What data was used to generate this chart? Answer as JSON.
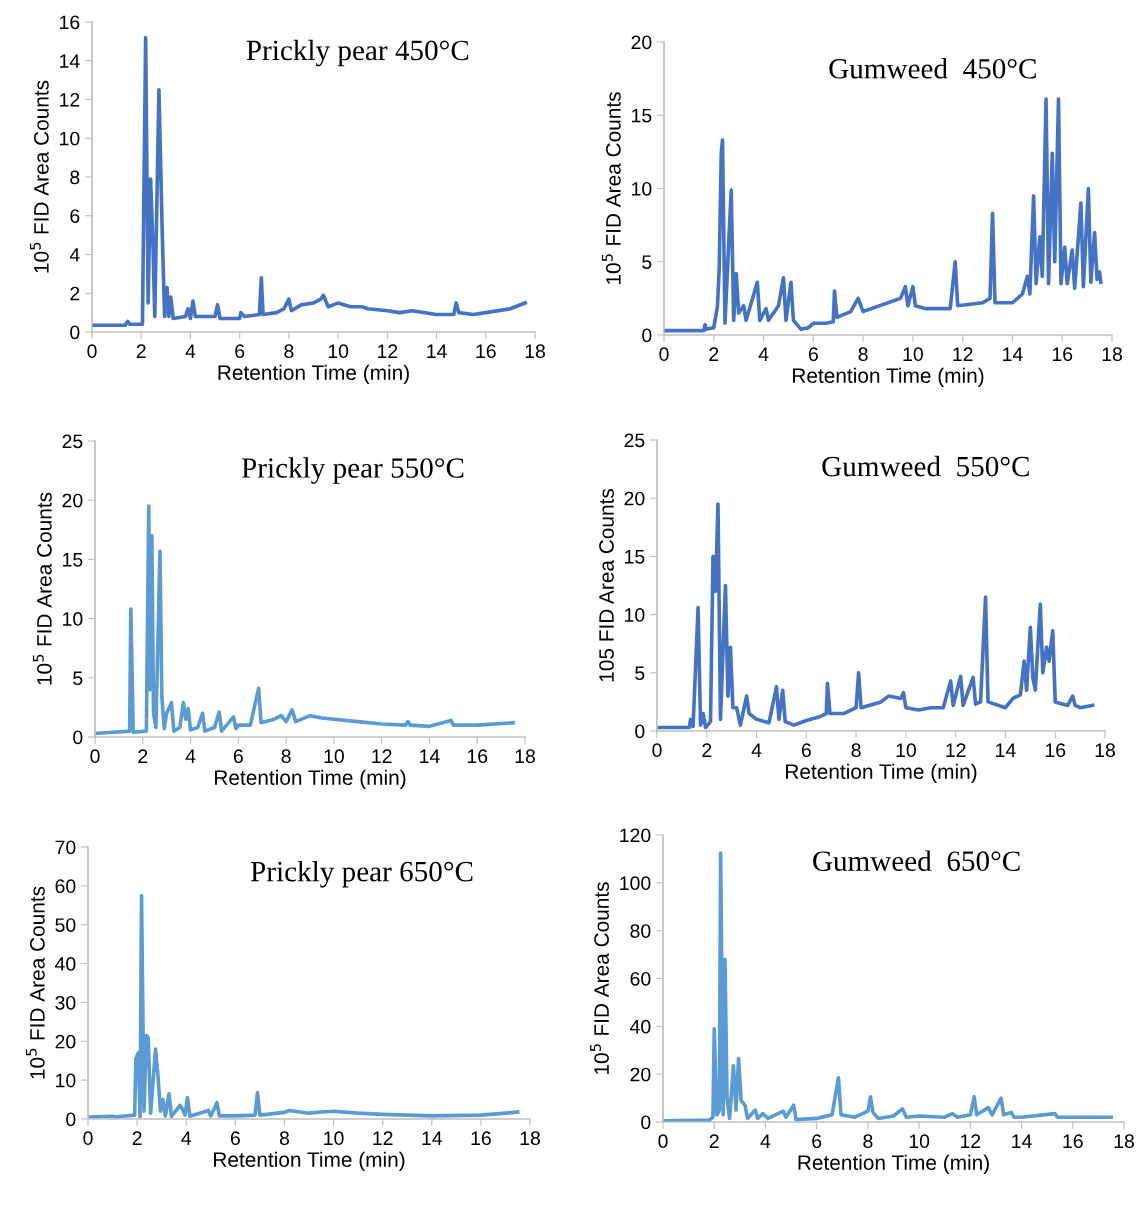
{
  "chart_data": [
    {
      "type": "line",
      "title": "Prickly pear 450°C",
      "xlabel": "Retention Time (min)",
      "ylabel": "10$^{5}$ FID Area Counts",
      "xlim": [
        0,
        18
      ],
      "xticks": [
        0,
        2,
        4,
        6,
        8,
        10,
        12,
        14,
        16,
        18
      ],
      "ylim": [
        0,
        16
      ],
      "yticks": [
        0,
        2,
        4,
        6,
        8,
        10,
        12,
        14,
        16
      ],
      "series": [
        {
          "color": "#4472c4",
          "x": [
            0,
            1.35,
            1.45,
            1.55,
            2.05,
            2.1,
            2.18,
            2.28,
            2.38,
            2.48,
            2.55,
            2.72,
            2.85,
            2.95,
            3.05,
            3.12,
            3.2,
            3.3,
            3.8,
            3.9,
            4.0,
            4.1,
            4.2,
            5.0,
            5.1,
            5.2,
            6.0,
            6.05,
            6.2,
            6.8,
            6.88,
            6.95,
            7.5,
            7.8,
            8.0,
            8.1,
            8.5,
            9.0,
            9.3,
            9.4,
            9.6,
            10.0,
            10.5,
            11.0,
            11.2,
            12.0,
            12.5,
            13.0,
            14.0,
            14.7,
            14.8,
            14.9,
            15.5,
            16.0,
            17.0,
            17.6
          ],
          "values": [
            0.35,
            0.35,
            0.55,
            0.4,
            0.4,
            6.2,
            15.2,
            1.5,
            7.9,
            4.4,
            0.8,
            12.5,
            5.3,
            0.8,
            2.3,
            0.8,
            1.8,
            0.7,
            0.8,
            1.2,
            0.7,
            1.6,
            0.8,
            0.8,
            1.4,
            0.7,
            0.7,
            1.0,
            0.8,
            0.9,
            2.8,
            0.9,
            1.0,
            1.2,
            1.7,
            1.1,
            1.4,
            1.5,
            1.7,
            1.9,
            1.3,
            1.5,
            1.3,
            1.3,
            1.2,
            1.1,
            1.0,
            1.1,
            0.9,
            0.9,
            1.5,
            1.0,
            0.9,
            1.0,
            1.2,
            1.5
          ]
        }
      ]
    },
    {
      "type": "line",
      "title": "Gumweed  450°C",
      "xlabel": "Retention Time (min)",
      "ylabel": "10$^{5}$ FID Area Counts",
      "xlim": [
        0,
        18
      ],
      "xticks": [
        0,
        2,
        4,
        6,
        8,
        10,
        12,
        14,
        16,
        18
      ],
      "ylim": [
        0,
        20
      ],
      "yticks": [
        0,
        5,
        10,
        15,
        20
      ],
      "series": [
        {
          "color": "#4472c4",
          "x": [
            0,
            1.6,
            1.65,
            1.7,
            2.0,
            2.15,
            2.22,
            2.3,
            2.35,
            2.45,
            2.7,
            2.8,
            2.9,
            3.0,
            3.2,
            3.3,
            3.75,
            3.85,
            4.1,
            4.2,
            4.6,
            4.8,
            4.9,
            5.1,
            5.2,
            5.5,
            5.8,
            6.0,
            6.5,
            6.8,
            6.85,
            6.95,
            7.5,
            7.8,
            8.0,
            8.5,
            9.0,
            9.5,
            9.7,
            9.8,
            10.0,
            10.1,
            10.5,
            11.0,
            11.5,
            11.7,
            11.8,
            12.3,
            12.8,
            13.1,
            13.2,
            13.3,
            14.0,
            14.4,
            14.6,
            14.7,
            14.85,
            14.95,
            15.1,
            15.2,
            15.35,
            15.45,
            15.6,
            15.7,
            15.85,
            15.95,
            16.1,
            16.2,
            16.4,
            16.5,
            16.75,
            16.85,
            17.05,
            17.15,
            17.3,
            17.4,
            17.5,
            17.55
          ],
          "values": [
            0.3,
            0.3,
            0.7,
            0.4,
            0.5,
            2.0,
            4.6,
            12.4,
            13.3,
            0.8,
            9.9,
            1.0,
            4.2,
            1.5,
            2.0,
            1.0,
            3.6,
            1.0,
            1.8,
            1.0,
            2.0,
            3.9,
            1.0,
            3.6,
            1.0,
            0.4,
            0.5,
            0.8,
            0.8,
            0.9,
            3.0,
            1.2,
            1.6,
            2.5,
            1.6,
            1.9,
            2.2,
            2.5,
            3.3,
            2.0,
            3.3,
            2.0,
            1.8,
            1.8,
            1.8,
            5.0,
            2.0,
            2.1,
            2.2,
            2.5,
            8.3,
            2.2,
            2.2,
            2.8,
            4.0,
            2.8,
            9.5,
            3.5,
            6.7,
            4.0,
            16.1,
            3.5,
            12.4,
            5.0,
            16.1,
            3.5,
            6.0,
            3.5,
            5.8,
            3.2,
            9.0,
            3.3,
            10.0,
            3.6,
            7.0,
            3.8,
            4.3,
            3.6
          ]
        }
      ]
    },
    {
      "type": "line",
      "title": "Prickly pear 550°C",
      "xlabel": "Retention Time (min)",
      "ylabel": "10$^{5}$ FID Area Counts",
      "xlim": [
        0,
        18
      ],
      "xticks": [
        0,
        2,
        4,
        6,
        8,
        10,
        12,
        14,
        16,
        18
      ],
      "ylim": [
        0,
        25
      ],
      "yticks": [
        0,
        5,
        10,
        15,
        20,
        25
      ],
      "series": [
        {
          "color": "#5b9bd5",
          "x": [
            0,
            1.45,
            1.5,
            1.6,
            2.15,
            2.25,
            2.3,
            2.38,
            2.45,
            2.55,
            2.72,
            2.8,
            2.9,
            3.0,
            3.2,
            3.3,
            3.55,
            3.7,
            3.8,
            3.9,
            4.0,
            4.3,
            4.5,
            4.6,
            5.0,
            5.2,
            5.3,
            5.8,
            5.9,
            6.0,
            6.5,
            6.85,
            6.95,
            7.5,
            7.8,
            8.0,
            8.25,
            8.4,
            9.0,
            9.5,
            10,
            11,
            12,
            13,
            13.1,
            13.2,
            14,
            14.9,
            15,
            16,
            17.5
          ],
          "values": [
            0.3,
            0.5,
            10.8,
            0.4,
            0.5,
            19.5,
            4,
            17,
            2,
            0.8,
            15.7,
            3.3,
            0.7,
            2.0,
            2.9,
            0.5,
            0.8,
            2.9,
            1.5,
            2.4,
            0.6,
            0.8,
            2.0,
            0.5,
            0.8,
            2.1,
            0.5,
            1.7,
            0.7,
            1.0,
            1.0,
            4.1,
            1.2,
            1.5,
            1.8,
            1.3,
            2.3,
            1.3,
            1.8,
            1.6,
            1.5,
            1.3,
            1.1,
            1.0,
            1.3,
            1.0,
            0.9,
            1.4,
            1.0,
            1.0,
            1.2
          ]
        }
      ]
    },
    {
      "type": "line",
      "title": "Gumweed  550°C",
      "xlabel": "Retention Time (min)",
      "ylabel": "105 FID Area Counts",
      "xlim": [
        0,
        18
      ],
      "xticks": [
        0,
        2,
        4,
        6,
        8,
        10,
        12,
        14,
        16,
        18
      ],
      "ylim": [
        0,
        25
      ],
      "yticks": [
        0,
        5,
        10,
        15,
        20,
        25
      ],
      "series": [
        {
          "color": "#4472c4",
          "x": [
            0,
            1.3,
            1.35,
            1.45,
            1.65,
            1.75,
            1.85,
            1.95,
            2.15,
            2.25,
            2.35,
            2.45,
            2.55,
            2.75,
            2.85,
            2.95,
            3.05,
            3.2,
            3.35,
            3.6,
            3.7,
            4.0,
            4.5,
            4.8,
            4.9,
            5.05,
            5.15,
            5.5,
            6.0,
            6.5,
            6.8,
            6.85,
            6.95,
            7.5,
            8.0,
            8.1,
            8.2,
            9.0,
            9.3,
            9.8,
            9.9,
            10,
            10.5,
            11,
            11.5,
            11.8,
            11.9,
            12.2,
            12.3,
            12.7,
            12.8,
            13.0,
            13.2,
            13.3,
            14.0,
            14.3,
            14.6,
            14.75,
            14.85,
            15.0,
            15.1,
            15.2,
            15.4,
            15.5,
            15.65,
            15.75,
            15.9,
            16.0,
            16.5,
            16.7,
            16.8,
            17.0,
            17.5
          ],
          "values": [
            0.3,
            0.3,
            1.0,
            0.4,
            10.6,
            0.5,
            1.5,
            0.3,
            0.8,
            15.0,
            12.0,
            19.5,
            1.0,
            12.5,
            3.0,
            7.2,
            2.0,
            2.0,
            0.5,
            3.0,
            1.5,
            1.0,
            0.7,
            3.8,
            1.0,
            3.5,
            0.8,
            0.5,
            0.9,
            1.2,
            1.5,
            4.1,
            1.5,
            1.5,
            2.0,
            5.0,
            2.0,
            2.5,
            3.0,
            2.8,
            3.3,
            2.0,
            1.8,
            2.0,
            2.0,
            4.3,
            2.2,
            4.7,
            2.2,
            4.6,
            2.3,
            2.5,
            11.5,
            2.5,
            2.0,
            2.8,
            3.1,
            6.0,
            3.5,
            8.9,
            4.6,
            3.5,
            10.9,
            5.0,
            7.2,
            6.0,
            8.6,
            2.5,
            2.2,
            3.0,
            2.2,
            2.0,
            2.2
          ]
        }
      ]
    },
    {
      "type": "line",
      "title": "Prickly pear 650°C",
      "xlabel": "Retention Time (min)",
      "ylabel": "10$^{5}$ FID Area Counts",
      "xlim": [
        0,
        18
      ],
      "xticks": [
        0,
        2,
        4,
        6,
        8,
        10,
        12,
        14,
        16,
        18
      ],
      "ylim": [
        0,
        70
      ],
      "yticks": [
        0,
        10,
        20,
        30,
        40,
        50,
        60,
        70
      ],
      "series": [
        {
          "color": "#5b9bd5",
          "x": [
            0,
            1.0,
            1.1,
            1.9,
            1.95,
            2.05,
            2.12,
            2.18,
            2.28,
            2.38,
            2.45,
            2.55,
            2.75,
            2.85,
            2.95,
            3.05,
            3.15,
            3.3,
            3.4,
            3.75,
            3.85,
            3.95,
            4.05,
            4.15,
            4.9,
            5.0,
            5.25,
            5.35,
            6.0,
            6.8,
            6.9,
            7.0,
            8.0,
            8.2,
            9.0,
            9.5,
            10,
            11,
            12,
            13,
            14,
            16,
            17,
            17.5
          ],
          "values": [
            0.5,
            0.7,
            0.5,
            1.0,
            15.5,
            17,
            0.5,
            57.5,
            2,
            21.5,
            21,
            1.5,
            18.0,
            11.0,
            2.0,
            5.0,
            0.8,
            6.5,
            0.7,
            3.5,
            2.5,
            1.0,
            5.5,
            0.7,
            2.2,
            0.8,
            4.2,
            0.8,
            0.8,
            1.0,
            6.8,
            1.0,
            1.7,
            2.2,
            1.5,
            1.8,
            2.0,
            1.5,
            1.2,
            1.0,
            0.8,
            1.0,
            1.5,
            1.8
          ]
        }
      ]
    },
    {
      "type": "line",
      "title": "Gumweed  650°C",
      "xlabel": "Retention Time (min)",
      "ylabel": "10$^{5}$ FID Area Counts",
      "xlim": [
        0,
        18
      ],
      "xticks": [
        0,
        2,
        4,
        6,
        8,
        10,
        12,
        14,
        16,
        18
      ],
      "ylim": [
        0,
        120
      ],
      "yticks": [
        0,
        20,
        40,
        60,
        80,
        100,
        120
      ],
      "series": [
        {
          "color": "#5b9bd5",
          "x": [
            0,
            1.8,
            1.95,
            2.0,
            2.1,
            2.2,
            2.25,
            2.35,
            2.42,
            2.5,
            2.6,
            2.75,
            2.85,
            2.95,
            3.05,
            3.2,
            3.3,
            3.6,
            3.7,
            3.9,
            4.1,
            4.7,
            4.8,
            5.1,
            5.2,
            6.0,
            6.6,
            6.85,
            6.95,
            7.5,
            8.0,
            8.1,
            8.2,
            8.4,
            9.0,
            9.35,
            9.5,
            10.0,
            11.0,
            11.3,
            11.5,
            12.0,
            12.15,
            12.25,
            12.7,
            12.85,
            13.2,
            13.3,
            13.6,
            13.7,
            14,
            15.3,
            15.4,
            16.5,
            17.5
          ],
          "values": [
            0.5,
            0.8,
            2,
            39,
            3,
            5,
            112.5,
            3,
            68,
            10,
            1.5,
            23.5,
            5,
            26.5,
            9,
            7,
            1.5,
            5,
            1.5,
            3.5,
            1.5,
            4.5,
            2.0,
            7.0,
            1.0,
            1.5,
            3,
            18.5,
            3,
            2,
            4.5,
            10.5,
            4,
            1.5,
            2.5,
            5.5,
            2,
            2.5,
            2,
            3.5,
            2,
            3,
            10.5,
            3,
            6,
            3,
            10,
            3,
            4,
            2,
            2,
            3.5,
            2,
            2,
            2
          ]
        }
      ]
    }
  ]
}
